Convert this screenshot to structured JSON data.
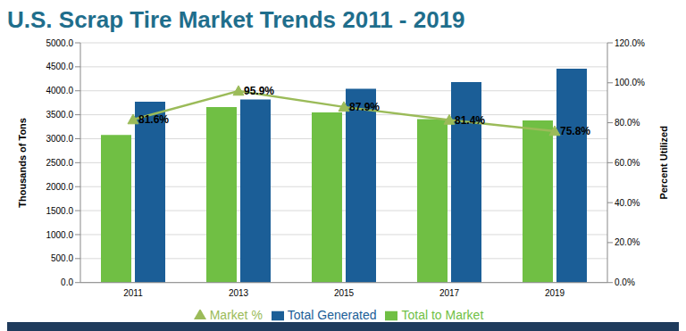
{
  "chart_data": {
    "type": "bar",
    "title": "U.S. Scrap Tire Market Trends 2011 - 2019",
    "categories": [
      "2011",
      "2013",
      "2015",
      "2017",
      "2019"
    ],
    "y_label": "Thousands of Tons",
    "y2_label": "Percent Utilized",
    "series": [
      {
        "name": "Total to Market",
        "type": "bar",
        "color": "#70bf44",
        "values": [
          3080,
          3660,
          3550,
          3410,
          3380
        ]
      },
      {
        "name": "Total Generated",
        "type": "bar",
        "color": "#1b5e97",
        "values": [
          3770,
          3820,
          4040,
          4180,
          4460
        ]
      },
      {
        "name": "Market %",
        "type": "line",
        "axis": "y2",
        "color": "#9bbb59",
        "marker": "triangle",
        "data_labels": true,
        "values": [
          81.6,
          95.9,
          87.9,
          81.4,
          75.8
        ],
        "value_labels": [
          "81.6%",
          "95.9%",
          "87.9%",
          "81.4%",
          "75.8%"
        ]
      }
    ],
    "ylim": [
      0,
      5000
    ],
    "yticks": [
      {
        "value": 0,
        "label": "0.0"
      },
      {
        "value": 500,
        "label": "500.0"
      },
      {
        "value": 1000,
        "label": "1000.0"
      },
      {
        "value": 1500,
        "label": "1500.0"
      },
      {
        "value": 2000,
        "label": "2000.0"
      },
      {
        "value": 2500,
        "label": "2500.0"
      },
      {
        "value": 3000,
        "label": "3000.0"
      },
      {
        "value": 3500,
        "label": "3500.0"
      },
      {
        "value": 4000,
        "label": "4000.0"
      },
      {
        "value": 4500,
        "label": "4500.0"
      },
      {
        "value": 5000,
        "label": "5000.0"
      }
    ],
    "y2lim": [
      0,
      120
    ],
    "y2ticks": [
      {
        "value": 0,
        "label": "0.0%"
      },
      {
        "value": 20,
        "label": "20.0%"
      },
      {
        "value": 40,
        "label": "40.0%"
      },
      {
        "value": 60,
        "label": "60.0%"
      },
      {
        "value": 80,
        "label": "80.0%"
      },
      {
        "value": 100,
        "label": "100.0%"
      },
      {
        "value": 120,
        "label": "120.0%"
      }
    ],
    "grid": true,
    "legend": "bottom"
  }
}
